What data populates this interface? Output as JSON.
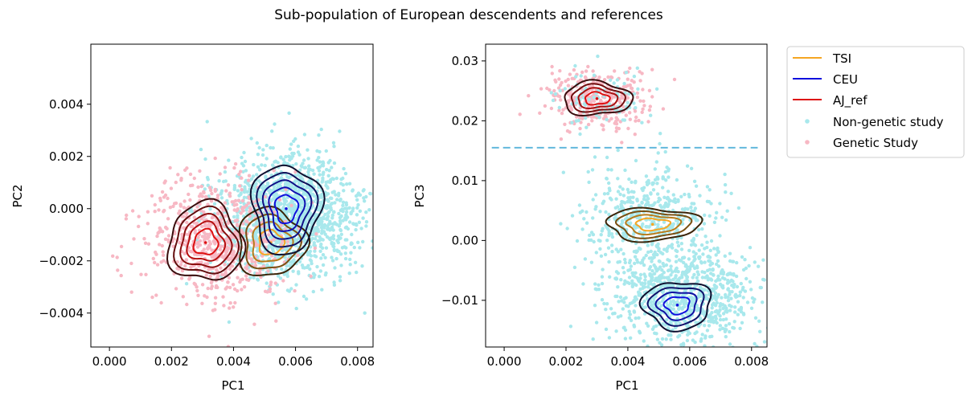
{
  "figure": {
    "title": "Sub-population of European descendents and references"
  },
  "legend": {
    "entries": [
      {
        "label": "TSI",
        "kind": "line",
        "color": "#f5a623"
      },
      {
        "label": "CEU",
        "kind": "line",
        "color": "#1010dd"
      },
      {
        "label": "AJ_ref",
        "kind": "line",
        "color": "#dd1111"
      },
      {
        "label": "Non-genetic study",
        "kind": "dot",
        "color": "#a8e8ec"
      },
      {
        "label": "Genetic Study",
        "kind": "dot",
        "color": "#f7b8c4"
      }
    ]
  },
  "colors": {
    "non_genetic": "#a8e8ec",
    "genetic": "#f7b8c4",
    "tsi_outer": "#3b2408",
    "tsi_inner": "#f5a623",
    "ceu_outer": "#0f1030",
    "ceu_inner": "#1010dd",
    "aj_outer": "#3a0d0d",
    "aj_inner": "#dd1111",
    "threshold": "#62b8dc"
  },
  "chart_data": [
    {
      "type": "scatter",
      "panel": "left",
      "xlabel": "PC1",
      "ylabel": "PC2",
      "xlim": [
        -0.0006,
        0.0085
      ],
      "ylim": [
        -0.0053,
        0.0063
      ],
      "xticks": [
        "0.000",
        "0.002",
        "0.004",
        "0.006",
        "0.008"
      ],
      "xtick_values": [
        0,
        0.002,
        0.004,
        0.006,
        0.008
      ],
      "yticks": [
        "−0.004",
        "−0.002",
        "0.000",
        "0.002",
        "0.004"
      ],
      "ytick_values": [
        -0.004,
        -0.002,
        0,
        0.002,
        0.004
      ],
      "scatter_clouds": [
        {
          "series": "Non-genetic study",
          "center": [
            0.0058,
            -0.0003
          ],
          "spread": [
            0.0011,
            0.0012
          ],
          "n": 1500
        },
        {
          "series": "Genetic Study",
          "center": [
            0.0035,
            -0.0012
          ],
          "spread": [
            0.0011,
            0.0012
          ],
          "n": 650
        }
      ],
      "density_contours": [
        {
          "series": "AJ_ref",
          "center": [
            0.0031,
            -0.0013
          ],
          "radii": [
            0.0012,
            0.0015
          ],
          "levels": 5
        },
        {
          "series": "TSI",
          "center": [
            0.0052,
            -0.0013
          ],
          "radii": [
            0.0011,
            0.0013
          ],
          "levels": 4
        },
        {
          "series": "CEU",
          "center": [
            0.0057,
            0.0
          ],
          "radii": [
            0.0011,
            0.0017
          ],
          "levels": 5
        }
      ]
    },
    {
      "type": "scatter",
      "panel": "right",
      "xlabel": "PC1",
      "ylabel": "PC3",
      "xlim": [
        -0.0006,
        0.0085
      ],
      "ylim": [
        -0.0178,
        0.0328
      ],
      "xticks": [
        "0.000",
        "0.002",
        "0.004",
        "0.006",
        "0.008"
      ],
      "xtick_values": [
        0,
        0.002,
        0.004,
        0.006,
        0.008
      ],
      "yticks": [
        "−0.01",
        "0.00",
        "0.01",
        "0.02",
        "0.03"
      ],
      "ytick_values": [
        -0.01,
        0,
        0.01,
        0.02,
        0.03
      ],
      "threshold_line": {
        "y": 0.0155,
        "style": "dashed"
      },
      "scatter_clouds": [
        {
          "series": "Non-genetic study",
          "center": [
            0.0058,
            -0.009
          ],
          "spread": [
            0.0012,
            0.004
          ],
          "n": 900
        },
        {
          "series": "Non-genetic study",
          "center": [
            0.0047,
            0.004
          ],
          "spread": [
            0.001,
            0.004
          ],
          "n": 450
        },
        {
          "series": "Genetic Study",
          "center": [
            0.0031,
            0.0235
          ],
          "spread": [
            0.0009,
            0.0025
          ],
          "n": 320
        },
        {
          "series": "Non-genetic study",
          "center": [
            0.0031,
            0.0235
          ],
          "spread": [
            0.0009,
            0.0025
          ],
          "n": 90
        }
      ],
      "density_contours": [
        {
          "series": "AJ_ref",
          "center": [
            0.003,
            0.0237
          ],
          "radii": [
            0.0011,
            0.0028
          ],
          "levels": 4
        },
        {
          "series": "TSI",
          "center": [
            0.0048,
            0.0027
          ],
          "radii": [
            0.0015,
            0.0027
          ],
          "levels": 4
        },
        {
          "series": "CEU",
          "center": [
            0.0056,
            -0.0108
          ],
          "radii": [
            0.0011,
            0.004
          ],
          "levels": 4
        }
      ]
    }
  ]
}
